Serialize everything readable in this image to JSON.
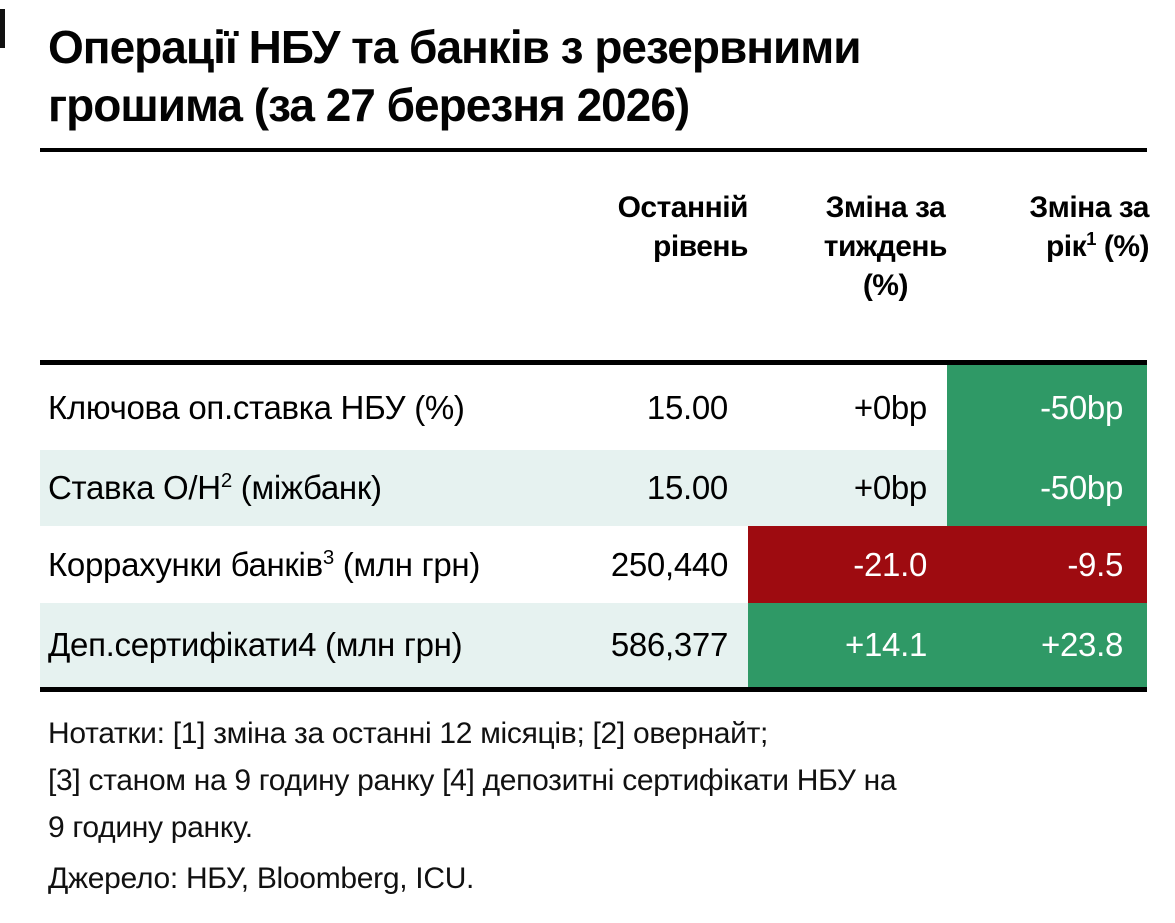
{
  "colors": {
    "green": "#2F9966",
    "red": "#9E0B10",
    "row-light": "#E6F2F0",
    "page-bg": "#FFFFFF"
  },
  "title": {
    "line1": "Операції НБУ та банків з резервними",
    "line2": "грошима (за 27 березня 2026)"
  },
  "header": {
    "level": {
      "l1": "Останній",
      "l2": "рівень"
    },
    "week": {
      "l1": "Зміна за",
      "l2": "тиждень",
      "l3": "(%)"
    },
    "year": {
      "l1": "Зміна за",
      "l2_pre": "рік",
      "l2_sup": "1",
      "l2_post": " (%)"
    }
  },
  "rows": [
    {
      "label_pre": "Ключова оп.ставка НБУ (%)",
      "label_sup": "",
      "label_post": "",
      "level": "15.00",
      "week": "+0bp",
      "year": "-50bp"
    },
    {
      "label_pre": "Ставка О/Н",
      "label_sup": "2",
      "label_post": " (міжбанк)",
      "level": "15.00",
      "week": "+0bp",
      "year": "-50bp"
    },
    {
      "label_pre": "Коррахунки банків",
      "label_sup": "3",
      "label_post": " (млн грн)",
      "level": "250,440",
      "week": "-21.0",
      "year": "-9.5"
    },
    {
      "label_pre": "Деп.сертифікати4",
      "label_sup": "",
      "label_post": " (млн грн)",
      "level": "586,377",
      "week": "+14.1",
      "year": "+23.8"
    }
  ],
  "notes": [
    "Нотатки: [1] зміна за останні 12 місяців; [2] овернайт;",
    "[3] станом на 9 годину ранку [4] депозитні сертифікати НБУ на",
    "9 годину ранку."
  ],
  "source": "Джерело: НБУ, Bloomberg, ICU."
}
